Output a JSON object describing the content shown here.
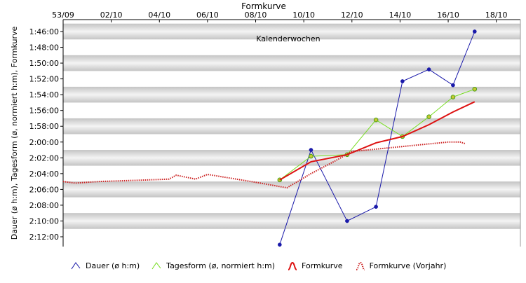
{
  "chart_data": {
    "type": "line",
    "title": "Formkurve",
    "annotation": "Kalenderwochen",
    "xlabel": "",
    "ylabel": "Dauer (ø h:m), Tagesform (ø, normiert h:m), Formkurve",
    "x_ticks": [
      "53/09",
      "02/10",
      "04/10",
      "06/10",
      "08/10",
      "10/10",
      "12/10",
      "14/10",
      "16/10",
      "18/10"
    ],
    "y_ticks": [
      "1:46:00",
      "1:48:00",
      "1:50:00",
      "1:52:00",
      "1:54:00",
      "1:56:00",
      "1:58:00",
      "2:00:00",
      "2:02:00",
      "2:04:00",
      "2:06:00",
      "2:08:00",
      "2:10:00",
      "2:12:00"
    ],
    "x_range": [
      -1,
      18
    ],
    "y_range_minutes": [
      105,
      133
    ],
    "y_reversed": true,
    "grid": "alternating horizontal bands",
    "series": [
      {
        "name": "Dauer (ø h:m)",
        "color": "#1a1aaa",
        "style": "solid-markers",
        "points": [
          [
            8.0,
            133.0
          ],
          [
            9.3,
            121.0
          ],
          [
            10.8,
            130.0
          ],
          [
            12.0,
            128.2
          ],
          [
            13.1,
            112.3
          ],
          [
            14.2,
            110.8
          ],
          [
            15.2,
            112.8
          ],
          [
            16.1,
            106.0
          ]
        ]
      },
      {
        "name": "Tagesform (ø, normiert h:m)",
        "color": "#77dd22",
        "style": "solid-markers",
        "points": [
          [
            8.0,
            124.8
          ],
          [
            9.3,
            121.8
          ],
          [
            10.8,
            121.6
          ],
          [
            12.0,
            117.2
          ],
          [
            13.1,
            119.3
          ],
          [
            14.2,
            116.8
          ],
          [
            15.2,
            114.3
          ],
          [
            16.1,
            113.3
          ]
        ]
      },
      {
        "name": "Formkurve",
        "color": "#dd1111",
        "style": "thick",
        "points": [
          [
            8.0,
            124.8
          ],
          [
            9.3,
            122.5
          ],
          [
            10.8,
            121.6
          ],
          [
            12.0,
            120.1
          ],
          [
            13.1,
            119.3
          ],
          [
            14.2,
            117.8
          ],
          [
            15.2,
            116.2
          ],
          [
            16.1,
            114.9
          ]
        ]
      },
      {
        "name": "Formkurve (Vorjahr)",
        "color": "#cc2222",
        "style": "dotted",
        "points": [
          [
            -1.0,
            125.0
          ],
          [
            -0.5,
            125.2
          ],
          [
            0.5,
            125.0
          ],
          [
            1.5,
            124.9
          ],
          [
            2.5,
            124.8
          ],
          [
            3.4,
            124.7
          ],
          [
            3.7,
            124.2
          ],
          [
            4.5,
            124.7
          ],
          [
            5.0,
            124.1
          ],
          [
            6.0,
            124.6
          ],
          [
            7.0,
            125.1
          ],
          [
            8.3,
            125.8
          ],
          [
            9.3,
            124.0
          ],
          [
            10.3,
            122.4
          ],
          [
            11.0,
            121.2
          ],
          [
            12.0,
            120.9
          ],
          [
            13.0,
            120.6
          ],
          [
            14.0,
            120.3
          ],
          [
            15.0,
            120.0
          ],
          [
            15.5,
            120.0
          ],
          [
            15.7,
            120.2
          ]
        ]
      }
    ]
  }
}
